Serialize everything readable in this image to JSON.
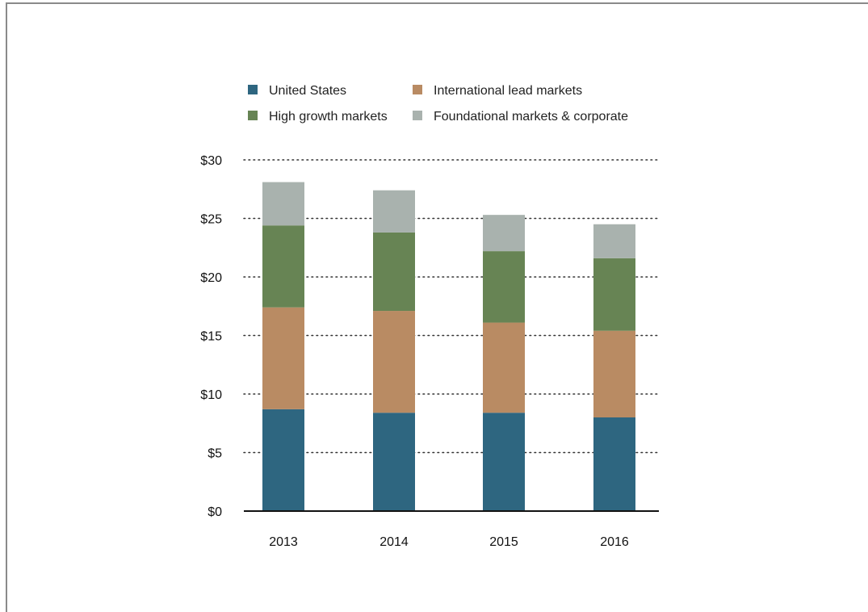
{
  "chart_data": {
    "type": "bar",
    "stacked": true,
    "title": "",
    "xlabel": "",
    "ylabel": "",
    "categories": [
      "2013",
      "2014",
      "2015",
      "2016"
    ],
    "y_tick_labels": [
      "$0",
      "$5",
      "$10",
      "$15",
      "$20",
      "$25",
      "$30"
    ],
    "y_ticks": [
      0,
      5,
      10,
      15,
      20,
      25,
      30
    ],
    "ylim": [
      0,
      30
    ],
    "grid": "dotted horizontal",
    "legend_position": "top",
    "series": [
      {
        "name": "United States",
        "color": "#2e6680",
        "values": [
          8.7,
          8.4,
          8.4,
          8.0
        ]
      },
      {
        "name": "International lead markets",
        "color": "#b98b63",
        "values": [
          8.7,
          8.7,
          7.7,
          7.4
        ]
      },
      {
        "name": "High growth markets",
        "color": "#678454",
        "values": [
          7.0,
          6.7,
          6.1,
          6.2
        ]
      },
      {
        "name": "Foundational markets & corporate",
        "color": "#a9b2ae",
        "values": [
          3.7,
          3.6,
          3.1,
          2.9
        ]
      }
    ]
  }
}
